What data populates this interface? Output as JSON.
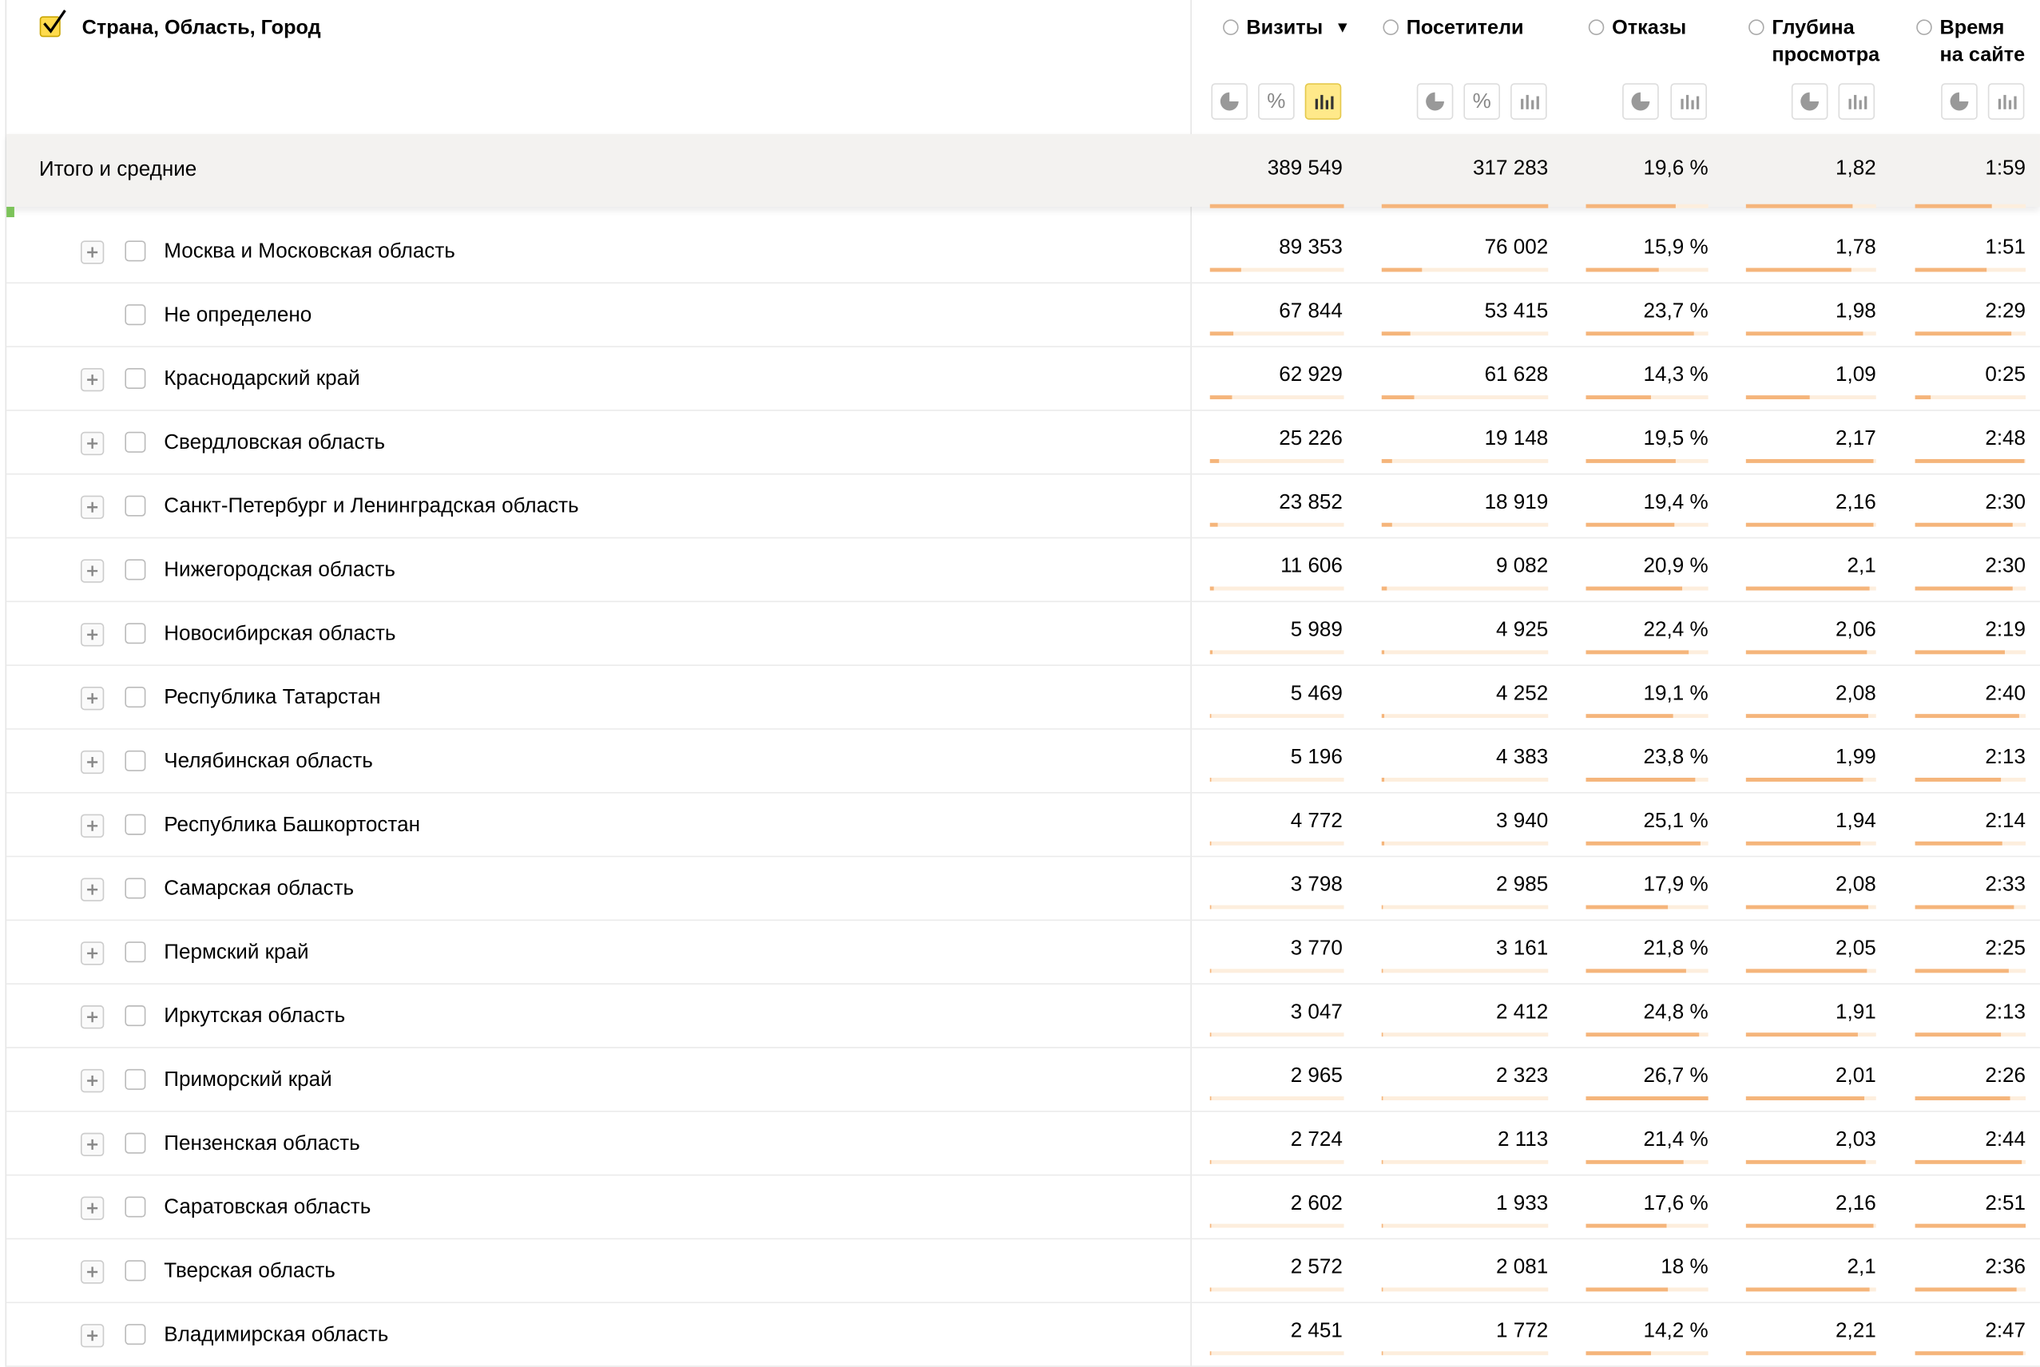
{
  "header": {
    "title": "Страна, Область, Город",
    "columns": [
      {
        "lines": [
          "Визиты"
        ],
        "sorted": true
      },
      {
        "lines": [
          "Посетители"
        ]
      },
      {
        "lines": [
          "Отказы"
        ]
      },
      {
        "lines": [
          "Глубина",
          "просмотра"
        ]
      },
      {
        "lines": [
          "Время",
          "на сайте"
        ]
      }
    ]
  },
  "totals": {
    "label": "Итого и средние",
    "values": [
      "389 549",
      "317 283",
      "19,6 %",
      "1,82",
      "1:59"
    ]
  },
  "rows": [
    {
      "label": "Москва и Московская область",
      "expandable": true,
      "values": [
        "89 353",
        "76 002",
        "15,9 %",
        "1,78",
        "1:51"
      ]
    },
    {
      "label": "Не определено",
      "expandable": false,
      "values": [
        "67 844",
        "53 415",
        "23,7 %",
        "1,98",
        "2:29"
      ]
    },
    {
      "label": "Краснодарский край",
      "expandable": true,
      "values": [
        "62 929",
        "61 628",
        "14,3 %",
        "1,09",
        "0:25"
      ]
    },
    {
      "label": "Свердловская область",
      "expandable": true,
      "values": [
        "25 226",
        "19 148",
        "19,5 %",
        "2,17",
        "2:48"
      ]
    },
    {
      "label": "Санкт-Петербург и Ленинградская область",
      "expandable": true,
      "values": [
        "23 852",
        "18 919",
        "19,4 %",
        "2,16",
        "2:30"
      ]
    },
    {
      "label": "Нижегородская область",
      "expandable": true,
      "values": [
        "11 606",
        "9 082",
        "20,9 %",
        "2,1",
        "2:30"
      ]
    },
    {
      "label": "Новосибирская область",
      "expandable": true,
      "values": [
        "5 989",
        "4 925",
        "22,4 %",
        "2,06",
        "2:19"
      ]
    },
    {
      "label": "Республика Татарстан",
      "expandable": true,
      "values": [
        "5 469",
        "4 252",
        "19,1 %",
        "2,08",
        "2:40"
      ]
    },
    {
      "label": "Челябинская область",
      "expandable": true,
      "values": [
        "5 196",
        "4 383",
        "23,8 %",
        "1,99",
        "2:13"
      ]
    },
    {
      "label": "Республика Башкортостан",
      "expandable": true,
      "values": [
        "4 772",
        "3 940",
        "25,1 %",
        "1,94",
        "2:14"
      ]
    },
    {
      "label": "Самарская область",
      "expandable": true,
      "values": [
        "3 798",
        "2 985",
        "17,9 %",
        "2,08",
        "2:33"
      ]
    },
    {
      "label": "Пермский край",
      "expandable": true,
      "values": [
        "3 770",
        "3 161",
        "21,8 %",
        "2,05",
        "2:25"
      ]
    },
    {
      "label": "Иркутская область",
      "expandable": true,
      "values": [
        "3 047",
        "2 412",
        "24,8 %",
        "1,91",
        "2:13"
      ]
    },
    {
      "label": "Приморский край",
      "expandable": true,
      "values": [
        "2 965",
        "2 323",
        "26,7 %",
        "2,01",
        "2:26"
      ]
    },
    {
      "label": "Пензенская область",
      "expandable": true,
      "values": [
        "2 724",
        "2 113",
        "21,4 %",
        "2,03",
        "2:44"
      ]
    },
    {
      "label": "Саратовская область",
      "expandable": true,
      "values": [
        "2 602",
        "1 933",
        "17,6 %",
        "2,16",
        "2:51"
      ]
    },
    {
      "label": "Тверская область",
      "expandable": true,
      "values": [
        "2 572",
        "2 081",
        "18 %",
        "2,1",
        "2:36"
      ]
    },
    {
      "label": "Владимирская область",
      "expandable": true,
      "values": [
        "2 451",
        "1 772",
        "14,2 %",
        "2,21",
        "2:47"
      ]
    }
  ]
}
